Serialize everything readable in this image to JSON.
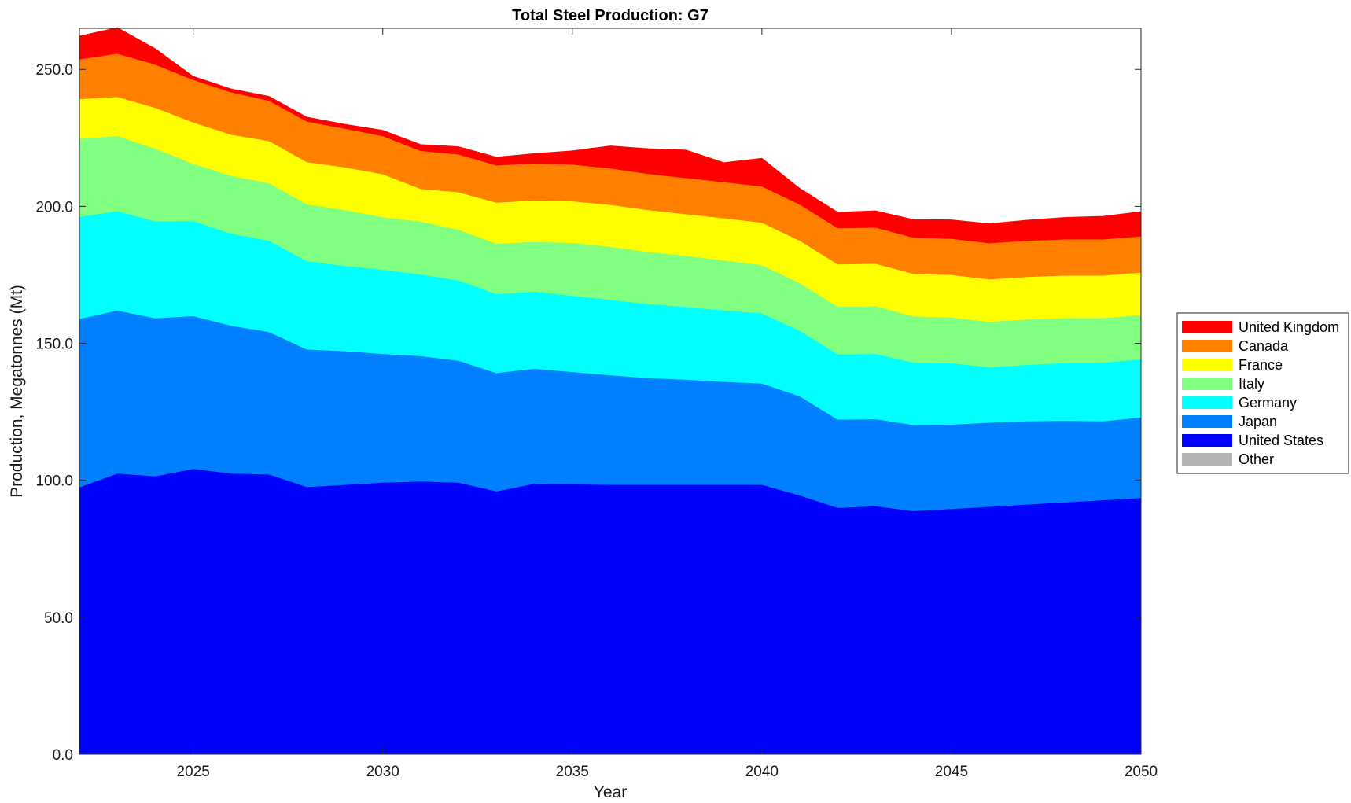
{
  "chart_data": {
    "type": "area",
    "stacked": true,
    "title": "Total Steel Production: G7",
    "xlabel": "Year",
    "ylabel": "Production, Megatonnes (Mt)",
    "xlim": [
      2022,
      2050
    ],
    "ylim": [
      0,
      265
    ],
    "xticks": [
      2025,
      2030,
      2035,
      2040,
      2045,
      2050
    ],
    "yticks": [
      0,
      50,
      100,
      150,
      200,
      250
    ],
    "ytick_labels": [
      "0.0",
      "50.0",
      "100.0",
      "150.0",
      "200.0",
      "250.0"
    ],
    "grid": false,
    "legend_placement": "outside-right",
    "x": [
      2022,
      2023,
      2024,
      2025,
      2026,
      2027,
      2028,
      2029,
      2030,
      2031,
      2032,
      2033,
      2034,
      2035,
      2036,
      2037,
      2038,
      2039,
      2040,
      2041,
      2042,
      2043,
      2044,
      2045,
      2046,
      2047,
      2048,
      2049,
      2050
    ],
    "series": [
      {
        "name": "Other",
        "color": "#b3b3b3",
        "values": [
          0,
          0,
          0,
          0,
          0,
          0,
          0,
          0,
          0,
          0,
          0,
          0,
          0,
          0,
          0,
          0,
          0,
          0,
          0,
          0,
          0,
          0,
          0,
          0,
          0,
          0,
          0,
          0,
          0
        ]
      },
      {
        "name": "United States",
        "color": "#0000ff",
        "values": [
          97.5,
          102.5,
          101.5,
          104.2,
          102.5,
          102.2,
          97.6,
          98.4,
          99.2,
          99.6,
          99.2,
          96,
          98.8,
          98.6,
          98.4,
          98.4,
          98.4,
          98.4,
          98.4,
          94.5,
          90,
          90.6,
          88.8,
          89.6,
          90.4,
          91.2,
          92,
          92.8,
          93.6
        ]
      },
      {
        "name": "Japan",
        "color": "#0080ff",
        "values": [
          61.5,
          59.5,
          57.7,
          55.8,
          54,
          52,
          50.2,
          48.8,
          47,
          45.8,
          44.5,
          43.2,
          42,
          41,
          40,
          39,
          38.4,
          37.6,
          37,
          36.2,
          32.2,
          31.8,
          31.4,
          30.8,
          30.7,
          30.4,
          29.8,
          28.8,
          29.4
        ]
      },
      {
        "name": "Germany",
        "color": "#00ffff",
        "values": [
          37.2,
          36.3,
          35.4,
          34.7,
          33.6,
          33.3,
          32.2,
          31.1,
          30.7,
          29.8,
          29.3,
          28.8,
          28.1,
          27.8,
          27.5,
          27,
          26.5,
          26.1,
          25.6,
          23.9,
          23.8,
          23.8,
          22.8,
          22.4,
          20.2,
          20.6,
          21.1,
          21.4,
          21.2
        ]
      },
      {
        "name": "Italy",
        "color": "#80ff80",
        "values": [
          28.5,
          27.4,
          26.5,
          20.9,
          21.1,
          21.0,
          20.8,
          20.4,
          19.2,
          19.3,
          18.5,
          18.4,
          18.2,
          19.3,
          19.4,
          19,
          18.7,
          18.2,
          17.6,
          17.4,
          17.4,
          17.4,
          16.9,
          16.7,
          16.6,
          16.6,
          16.4,
          16.3,
          16.2
        ]
      },
      {
        "name": "France",
        "color": "#ffff00",
        "values": [
          14.5,
          14.3,
          14.9,
          15.1,
          15.0,
          15.4,
          15.4,
          15.6,
          15.7,
          11.9,
          13.7,
          15.0,
          15.1,
          15.2,
          15.3,
          15.3,
          15.2,
          15.4,
          15.5,
          15.5,
          15.5,
          15.5,
          15.5,
          15.5,
          15.5,
          15.5,
          15.5,
          15.5,
          15.5
        ]
      },
      {
        "name": "Canada",
        "color": "#ff8000",
        "values": [
          14.5,
          15.8,
          15.8,
          15.5,
          15.5,
          14.7,
          14.8,
          14.1,
          13.9,
          13.9,
          13.8,
          13.6,
          13.5,
          13.4,
          13.3,
          13.2,
          13.2,
          13.2,
          13.2,
          13.2,
          13.2,
          13.2,
          13.2,
          13.2,
          13.2,
          13.2,
          13.2,
          13.2,
          13.2
        ]
      },
      {
        "name": "United Kingdom",
        "color": "#ff0000",
        "values": [
          8.5,
          9.5,
          5.8,
          1.3,
          1.2,
          1.6,
          1.6,
          1.6,
          2.1,
          2.3,
          2.8,
          3,
          3.6,
          5,
          8.2,
          9.2,
          10.2,
          7.1,
          10.3,
          5.9,
          5.8,
          6.1,
          6.6,
          6.9,
          7.1,
          7.5,
          8.0,
          8.4,
          9.0
        ]
      }
    ]
  }
}
